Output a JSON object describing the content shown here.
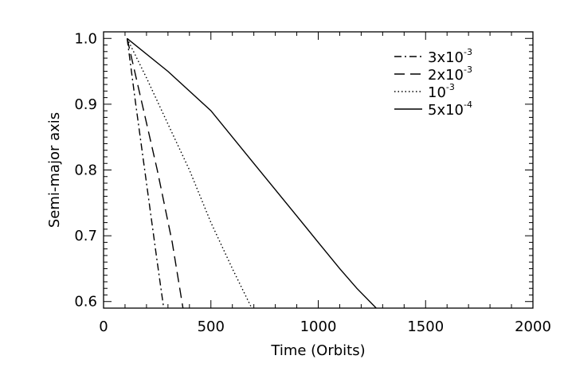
{
  "chart_data": {
    "type": "line",
    "title": "",
    "xlabel": "Time (Orbits)",
    "ylabel": "Semi-major axis",
    "xlim": [
      0,
      2000
    ],
    "ylim": [
      0.59,
      1.01
    ],
    "xticks": [
      0,
      500,
      1000,
      1500,
      2000
    ],
    "xtick_labels": [
      "0",
      "500",
      "1000",
      "1500",
      "2000"
    ],
    "yticks": [
      0.6,
      0.7,
      0.8,
      0.9,
      1.0
    ],
    "ytick_labels": [
      "0.6",
      "0.7",
      "0.8",
      "0.9",
      "1.0"
    ],
    "grid": false,
    "legend_position": "top-right",
    "series": [
      {
        "name": "3x10-3",
        "legend_base": "3x10",
        "legend_exp": "-3",
        "dash": "dash-dot",
        "x": [
          110,
          150,
          200,
          250,
          280
        ],
        "y": [
          1.0,
          0.9,
          0.78,
          0.66,
          0.59
        ]
      },
      {
        "name": "2x10-3",
        "legend_base": "2x10",
        "legend_exp": "-3",
        "dash": "dashed",
        "x": [
          110,
          180,
          250,
          320,
          370
        ],
        "y": [
          1.0,
          0.9,
          0.8,
          0.69,
          0.59
        ]
      },
      {
        "name": "10-3",
        "legend_base": "10",
        "legend_exp": "-3",
        "dash": "dotted",
        "x": [
          110,
          200,
          300,
          400,
          500,
          600,
          690
        ],
        "y": [
          1.0,
          0.94,
          0.87,
          0.8,
          0.72,
          0.65,
          0.59
        ]
      },
      {
        "name": "5x10-4",
        "legend_base": "5x10",
        "legend_exp": "-4",
        "dash": "solid",
        "x": [
          110,
          300,
          500,
          700,
          900,
          1000,
          1100,
          1180,
          1270
        ],
        "y": [
          1.0,
          0.95,
          0.89,
          0.81,
          0.73,
          0.69,
          0.65,
          0.62,
          0.59
        ]
      }
    ]
  }
}
